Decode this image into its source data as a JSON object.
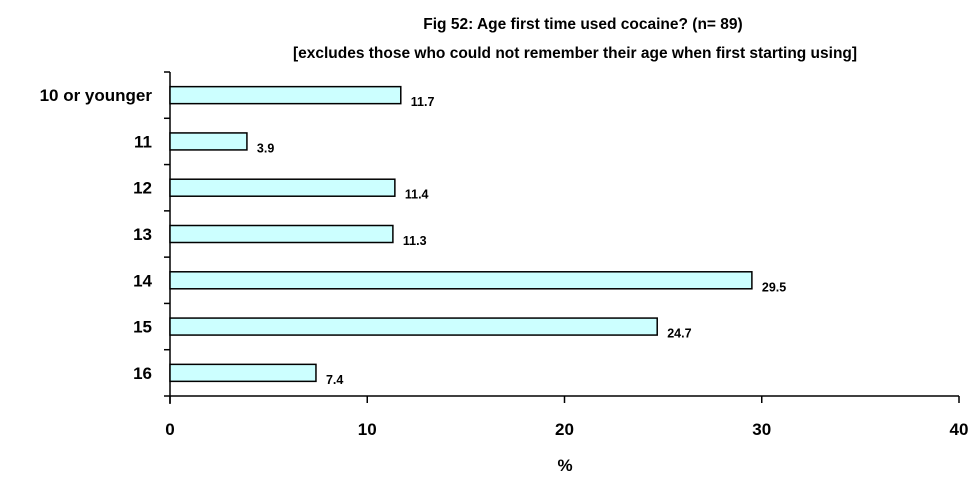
{
  "chart_data": {
    "type": "bar",
    "orientation": "horizontal",
    "title": "Fig 52:   Age first time used cocaine?  (n= 89)",
    "subtitle": "[excludes those who could not remember their age when first starting using]",
    "categories": [
      "10 or younger",
      "11",
      "12",
      "13",
      "14",
      "15",
      "16"
    ],
    "values": [
      11.7,
      3.9,
      11.4,
      11.3,
      29.5,
      24.7,
      7.4
    ],
    "data_labels": [
      "11.7",
      "3.9",
      "11.4",
      "11.3",
      "29.5",
      "24.7",
      "7.4"
    ],
    "xlabel": "%",
    "ylabel": "",
    "xlim": [
      0,
      40
    ],
    "xticks": [
      0,
      10,
      20,
      30,
      40
    ],
    "xtick_labels": [
      "0",
      "10",
      "20",
      "30",
      "40"
    ],
    "grid": false,
    "legend": "none",
    "colors": {
      "bar_fill": "#ccffff",
      "bar_stroke": "#000000",
      "axis": "#000000"
    }
  }
}
